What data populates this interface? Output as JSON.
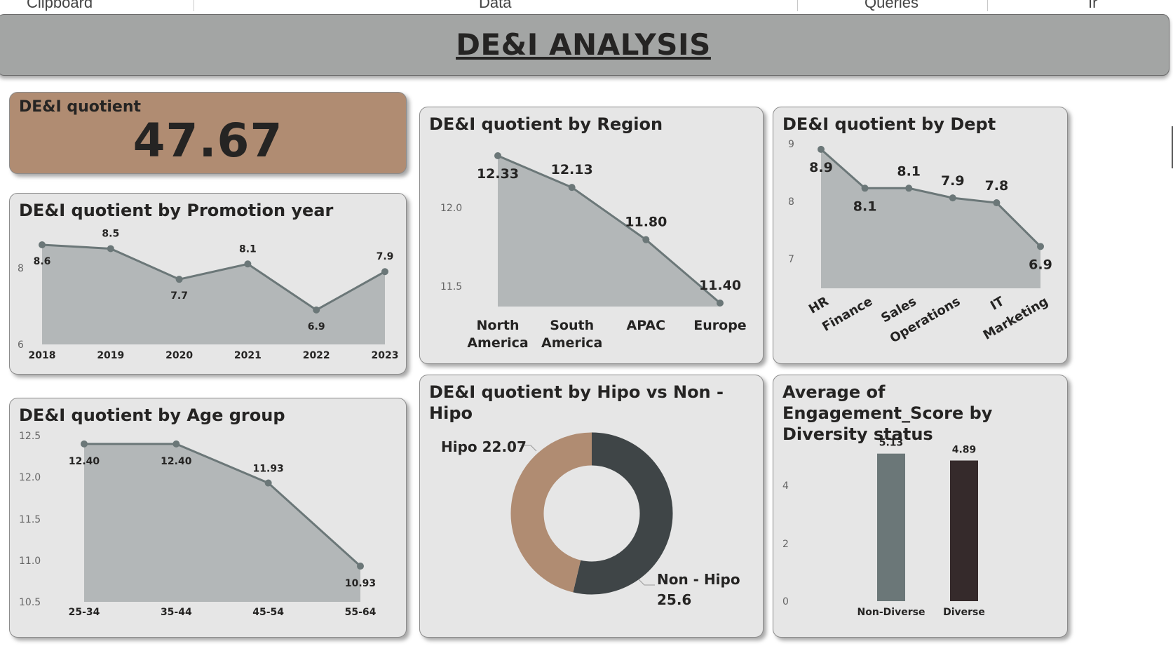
{
  "ribbon": {
    "items": [
      "Clipboard",
      "Data",
      "Queries",
      "Ir"
    ]
  },
  "banner": {
    "title": "DE&I ANALYSIS"
  },
  "kpi": {
    "label": "DE&I quotient",
    "value": "47.67"
  },
  "colors": {
    "line": "#6b7778",
    "area": "#b3b7b8",
    "hipo": "#b08c72",
    "non_hipo": "#3f4547",
    "bar_non_diverse": "#6b7778",
    "bar_diverse": "#352a2b"
  },
  "cards": {
    "promotion": {
      "title": "DE&I quotient by Promotion year"
    },
    "age": {
      "title": "DE&I quotient by Age group"
    },
    "region": {
      "title": "DE&I quotient by Region"
    },
    "dept": {
      "title": "DE&I quotient by Dept"
    },
    "hipo": {
      "title": "DE&I quotient by Hipo vs Non - Hipo"
    },
    "engagement": {
      "title": "Average of Engagement_Score by Diversity status"
    }
  },
  "chart_data": [
    {
      "id": "promotion",
      "type": "area",
      "title": "DE&I quotient by Promotion year",
      "categories": [
        "2018",
        "2019",
        "2020",
        "2021",
        "2022",
        "2023"
      ],
      "values": [
        8.6,
        8.5,
        7.7,
        8.1,
        6.9,
        7.9
      ],
      "labels": [
        "8.6",
        "8.5",
        "7.7",
        "8.1",
        "6.9",
        "7.9"
      ],
      "ylim": [
        6,
        8.6
      ],
      "yticks": [
        "8",
        "6"
      ]
    },
    {
      "id": "age",
      "type": "area",
      "title": "DE&I quotient by Age group",
      "categories": [
        "25-34",
        "35-44",
        "45-54",
        "55-64"
      ],
      "values": [
        12.4,
        12.4,
        11.93,
        10.93
      ],
      "labels": [
        "12.40",
        "12.40",
        "11.93",
        "10.93"
      ],
      "ylim": [
        10.5,
        12.5
      ],
      "yticks": [
        "12.5",
        "12.0",
        "11.5",
        "11.0",
        "10.5"
      ]
    },
    {
      "id": "region",
      "type": "area",
      "title": "DE&I quotient by Region",
      "categories": [
        "North America",
        "South America",
        "APAC",
        "Europe"
      ],
      "values": [
        12.33,
        12.13,
        11.8,
        11.4
      ],
      "labels": [
        "12.33",
        "12.13",
        "11.80",
        "11.40"
      ],
      "ylim": [
        11.4,
        12.33
      ],
      "yticks": [
        "12.0",
        "11.5"
      ]
    },
    {
      "id": "dept",
      "type": "area",
      "title": "DE&I quotient by Dept",
      "categories": [
        "HR",
        "Finance",
        "Sales",
        "Operations",
        "IT",
        "Marketing"
      ],
      "values": [
        8.9,
        8.1,
        8.1,
        7.9,
        7.8,
        6.9
      ],
      "labels": [
        "8.9",
        "8.1",
        "8.1",
        "7.9",
        "7.8",
        "6.9"
      ],
      "ylim": [
        6.5,
        9
      ],
      "yticks": [
        "9",
        "8",
        "7"
      ]
    },
    {
      "id": "hipo",
      "type": "pie",
      "title": "DE&I quotient by Hipo vs Non - Hipo",
      "slices": [
        {
          "name": "Non - Hipo",
          "value": 25.6,
          "label_value": "25.6"
        },
        {
          "name": "Hipo",
          "value": 22.07,
          "label_value": "22.07"
        }
      ]
    },
    {
      "id": "engagement",
      "type": "bar",
      "title": "Average of Engagement_Score by Diversity status",
      "categories": [
        "Non-Diverse",
        "Diverse"
      ],
      "values": [
        5.13,
        4.89
      ],
      "labels": [
        "5.13",
        "4.89"
      ],
      "ylim": [
        0,
        5.13
      ],
      "yticks": [
        "4",
        "2",
        "0"
      ]
    }
  ]
}
